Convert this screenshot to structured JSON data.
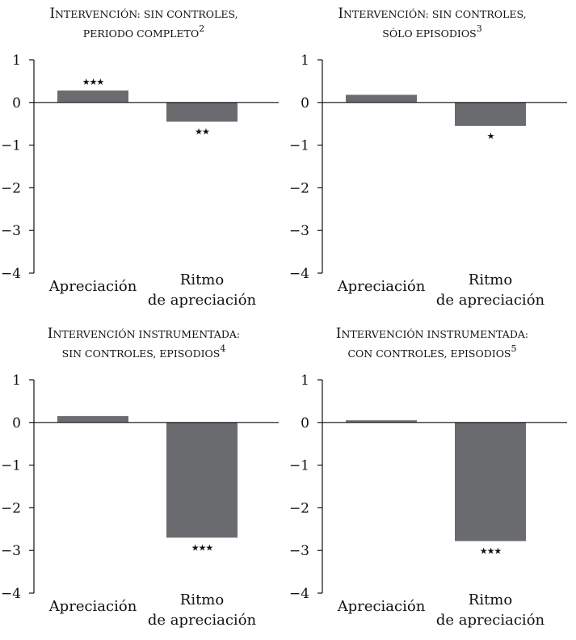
{
  "chart_data": [
    {
      "type": "bar",
      "title": [
        "Intervención: sin controles,",
        "periodo completo"
      ],
      "title_note": "2",
      "categories": [
        "Apreciación",
        "Ritmo de apreciación"
      ],
      "category_lines": [
        [
          "Apreciación"
        ],
        [
          "Ritmo",
          "de apreciación"
        ]
      ],
      "values": [
        0.28,
        -0.45
      ],
      "significance": [
        "★★★",
        "★★"
      ],
      "ylim": [
        -4,
        1
      ],
      "yticks": [
        1,
        0,
        -1,
        -2,
        -3,
        -4
      ],
      "ytick_labels": [
        "1",
        "0",
        "−1",
        "−2",
        "−3",
        "−4"
      ],
      "bar_color": "#6b6c70",
      "grid": false
    },
    {
      "type": "bar",
      "title": [
        "Intervención: sin controles,",
        "sólo episodios"
      ],
      "title_note": "3",
      "categories": [
        "Apreciación",
        "Ritmo de apreciación"
      ],
      "category_lines": [
        [
          "Apreciación"
        ],
        [
          "Ritmo",
          "de apreciación"
        ]
      ],
      "values": [
        0.18,
        -0.55
      ],
      "significance": [
        "",
        "★"
      ],
      "ylim": [
        -4,
        1
      ],
      "yticks": [
        1,
        0,
        -1,
        -2,
        -3,
        -4
      ],
      "ytick_labels": [
        "1",
        "0",
        "−1",
        "−2",
        "−3",
        "−4"
      ],
      "bar_color": "#6b6c70",
      "grid": false
    },
    {
      "type": "bar",
      "title": [
        "Intervención instrumentada:",
        "sin controles, episodios"
      ],
      "title_note": "4",
      "categories": [
        "Apreciación",
        "Ritmo de apreciación"
      ],
      "category_lines": [
        [
          "Apreciación"
        ],
        [
          "Ritmo",
          "de apreciación"
        ]
      ],
      "values": [
        0.15,
        -2.7
      ],
      "significance": [
        "",
        "★★★"
      ],
      "ylim": [
        -4,
        1
      ],
      "yticks": [
        1,
        0,
        -1,
        -2,
        -3,
        -4
      ],
      "ytick_labels": [
        "1",
        "0",
        "−1",
        "−2",
        "−3",
        "−4"
      ],
      "bar_color": "#6b6c70",
      "grid": false
    },
    {
      "type": "bar",
      "title": [
        "Intervención instrumentada:",
        "con controles, episodios"
      ],
      "title_note": "5",
      "categories": [
        "Apreciación",
        "Ritmo de apreciación"
      ],
      "category_lines": [
        [
          "Apreciación"
        ],
        [
          "Ritmo",
          "de apreciación"
        ]
      ],
      "values": [
        0.05,
        -2.78
      ],
      "significance": [
        "",
        "★★★"
      ],
      "ylim": [
        -4,
        1
      ],
      "yticks": [
        1,
        0,
        -1,
        -2,
        -3,
        -4
      ],
      "ytick_labels": [
        "1",
        "0",
        "−1",
        "−2",
        "−3",
        "−4"
      ],
      "bar_color": "#6b6c70",
      "grid": false
    }
  ]
}
